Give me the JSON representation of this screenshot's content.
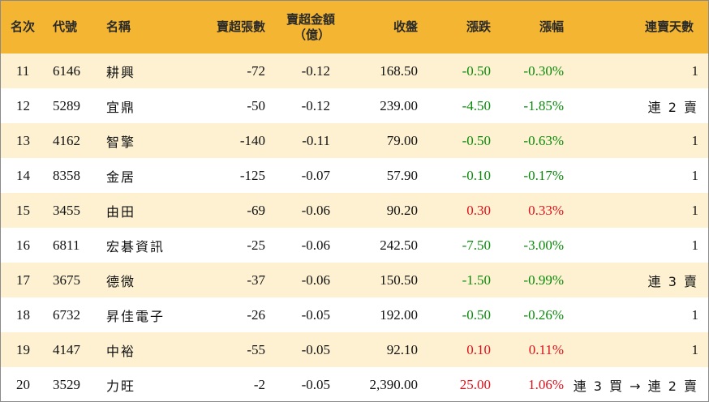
{
  "headers": {
    "rank": "名次",
    "code": "代號",
    "name": "名稱",
    "net_sell_lots": "賣超張數",
    "net_sell_amount_line1": "賣超金額",
    "net_sell_amount_line2": "（億）",
    "close": "收盤",
    "change": "漲跌",
    "change_pct": "漲幅",
    "streak": "連賣天數"
  },
  "rows": [
    {
      "rank": "11",
      "code": "6146",
      "name": "耕興",
      "lots": "-72",
      "amount": "-0.12",
      "close": "168.50",
      "change": "-0.50",
      "pct": "-0.30%",
      "streak": "1",
      "dir": "neg"
    },
    {
      "rank": "12",
      "code": "5289",
      "name": "宜鼎",
      "lots": "-50",
      "amount": "-0.12",
      "close": "239.00",
      "change": "-4.50",
      "pct": "-1.85%",
      "streak": "連 2 賣",
      "dir": "neg"
    },
    {
      "rank": "13",
      "code": "4162",
      "name": "智擎",
      "lots": "-140",
      "amount": "-0.11",
      "close": "79.00",
      "change": "-0.50",
      "pct": "-0.63%",
      "streak": "1",
      "dir": "neg"
    },
    {
      "rank": "14",
      "code": "8358",
      "name": "金居",
      "lots": "-125",
      "amount": "-0.07",
      "close": "57.90",
      "change": "-0.10",
      "pct": "-0.17%",
      "streak": "1",
      "dir": "neg"
    },
    {
      "rank": "15",
      "code": "3455",
      "name": "由田",
      "lots": "-69",
      "amount": "-0.06",
      "close": "90.20",
      "change": "0.30",
      "pct": "0.33%",
      "streak": "1",
      "dir": "pos"
    },
    {
      "rank": "16",
      "code": "6811",
      "name": "宏碁資訊",
      "lots": "-25",
      "amount": "-0.06",
      "close": "242.50",
      "change": "-7.50",
      "pct": "-3.00%",
      "streak": "1",
      "dir": "neg"
    },
    {
      "rank": "17",
      "code": "3675",
      "name": "德微",
      "lots": "-37",
      "amount": "-0.06",
      "close": "150.50",
      "change": "-1.50",
      "pct": "-0.99%",
      "streak": "連 3 賣",
      "dir": "neg"
    },
    {
      "rank": "18",
      "code": "6732",
      "name": "昇佳電子",
      "lots": "-26",
      "amount": "-0.05",
      "close": "192.00",
      "change": "-0.50",
      "pct": "-0.26%",
      "streak": "1",
      "dir": "neg"
    },
    {
      "rank": "19",
      "code": "4147",
      "name": "中裕",
      "lots": "-55",
      "amount": "-0.05",
      "close": "92.10",
      "change": "0.10",
      "pct": "0.11%",
      "streak": "1",
      "dir": "pos"
    },
    {
      "rank": "20",
      "code": "3529",
      "name": "力旺",
      "lots": "-2",
      "amount": "-0.05",
      "close": "2,390.00",
      "change": "25.00",
      "pct": "1.06%",
      "streak": "連 3 買 → 連 2 賣",
      "dir": "pos"
    }
  ],
  "colors": {
    "header_bg": "#f4b632",
    "odd_row_bg": "#fdf1d2",
    "negative": "#0a8a0a",
    "positive": "#e0101a"
  }
}
